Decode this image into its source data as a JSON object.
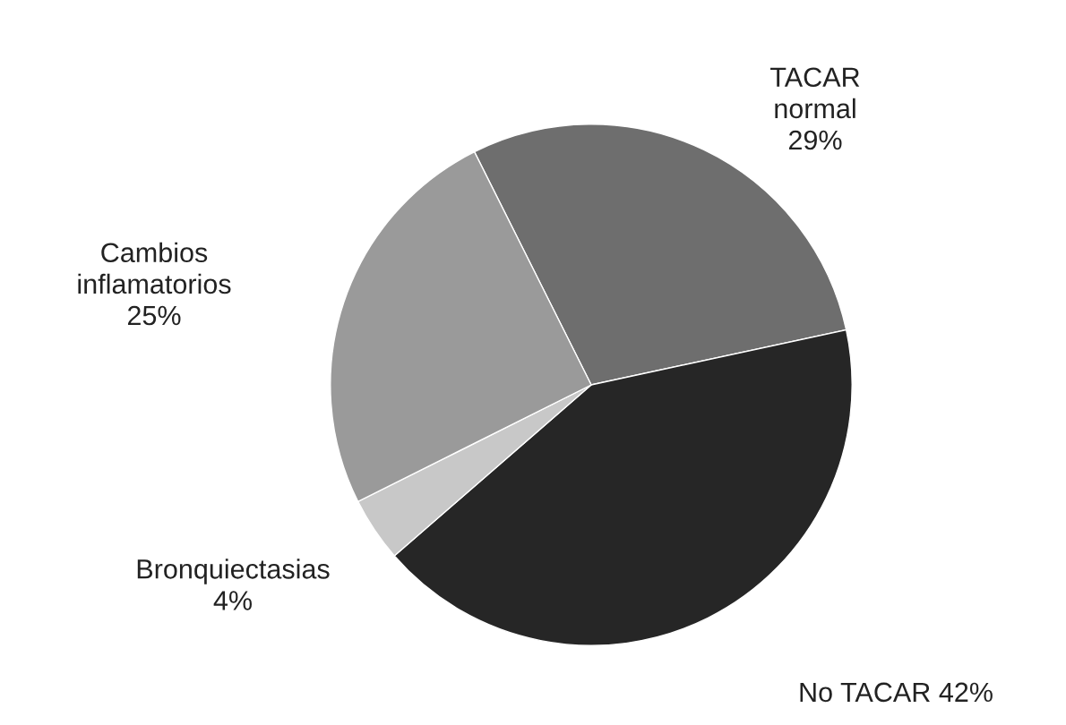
{
  "chart_data": {
    "type": "pie",
    "categories": [
      "TACAR normal",
      "No TACAR",
      "Bronquiectasias",
      "Cambios inflamatorios"
    ],
    "values": [
      29,
      42,
      4,
      25
    ],
    "value_labels": [
      "29%",
      "42%",
      "4%",
      "25%"
    ],
    "colors": [
      "#6e6e6e",
      "#262626",
      "#c8c8c8",
      "#9a9a9a"
    ],
    "legend": false
  }
}
